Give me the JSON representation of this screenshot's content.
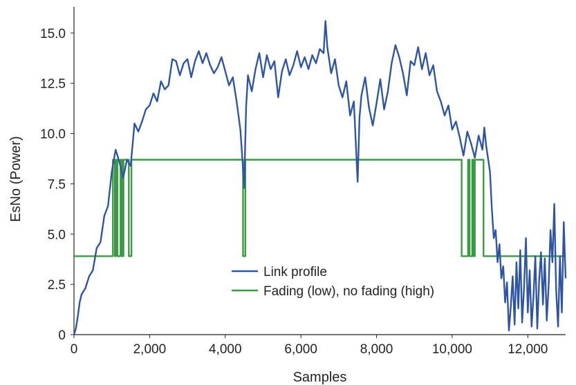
{
  "chart_data": {
    "type": "line",
    "xlabel": "Samples",
    "ylabel": "EsNo (Power)",
    "xlim": [
      0,
      13000
    ],
    "ylim": [
      0,
      16.3
    ],
    "x_ticks": [
      0,
      2000,
      4000,
      6000,
      8000,
      10000,
      12000
    ],
    "x_tick_labels": [
      "0",
      "2,000",
      "4,000",
      "6,000",
      "8,000",
      "10,000",
      "12,000"
    ],
    "y_ticks": [
      0,
      2.5,
      5.0,
      7.5,
      10.0,
      12.5,
      15.0
    ],
    "y_tick_labels": [
      "0",
      "2.5",
      "5.0",
      "7.5",
      "10.0",
      "12.5",
      "15.0"
    ],
    "grid": false,
    "legend_position": "bottom-center",
    "series": [
      {
        "name": "Link profile",
        "color": "#2E55A4",
        "x": [
          0,
          50,
          100,
          150,
          200,
          300,
          400,
          500,
          600,
          700,
          800,
          900,
          1000,
          1100,
          1200,
          1300,
          1400,
          1500,
          1600,
          1700,
          1800,
          1900,
          2000,
          2100,
          2200,
          2300,
          2400,
          2500,
          2600,
          2700,
          2800,
          2900,
          3000,
          3100,
          3200,
          3300,
          3400,
          3500,
          3600,
          3700,
          3800,
          3900,
          4000,
          4100,
          4200,
          4300,
          4400,
          4450,
          4500,
          4550,
          4600,
          4700,
          4800,
          4900,
          5000,
          5100,
          5200,
          5300,
          5400,
          5500,
          5600,
          5700,
          5800,
          5900,
          6000,
          6100,
          6200,
          6300,
          6400,
          6500,
          6600,
          6650,
          6700,
          6800,
          6900,
          7000,
          7100,
          7200,
          7300,
          7400,
          7500,
          7550,
          7600,
          7700,
          7800,
          7900,
          8000,
          8100,
          8200,
          8300,
          8400,
          8500,
          8600,
          8700,
          8800,
          8900,
          9000,
          9100,
          9200,
          9300,
          9400,
          9500,
          9600,
          9700,
          9800,
          9900,
          10000,
          10100,
          10200,
          10300,
          10400,
          10500,
          10600,
          10700,
          10800,
          10850,
          10900,
          11000,
          11050,
          11100,
          11150,
          11200,
          11250,
          11300,
          11350,
          11400,
          11450,
          11500,
          11550,
          11600,
          11650,
          11700,
          11750,
          11800,
          11850,
          11900,
          11950,
          12000,
          12050,
          12100,
          12150,
          12200,
          12250,
          12300,
          12350,
          12400,
          12450,
          12500,
          12550,
          12600,
          12650,
          12700,
          12750,
          12800,
          12850,
          12900,
          12950,
          13000
        ],
        "y": [
          0.0,
          0.3,
          0.9,
          1.6,
          2.0,
          2.3,
          2.9,
          3.2,
          4.3,
          4.6,
          5.9,
          6.4,
          8.1,
          9.2,
          8.6,
          7.8,
          8.7,
          8.4,
          10.5,
          10.1,
          10.6,
          11.2,
          11.4,
          12.0,
          11.6,
          12.6,
          12.2,
          12.4,
          13.7,
          13.6,
          12.9,
          13.5,
          13.7,
          12.8,
          13.6,
          14.1,
          13.5,
          14.0,
          13.4,
          13.0,
          13.3,
          13.8,
          13.1,
          12.4,
          12.8,
          11.6,
          10.2,
          8.8,
          7.3,
          11.3,
          12.9,
          12.1,
          13.2,
          14.0,
          12.8,
          13.9,
          13.2,
          13.6,
          11.8,
          13.1,
          13.7,
          12.9,
          13.4,
          14.1,
          13.3,
          13.8,
          13.2,
          13.9,
          13.5,
          14.2,
          14.0,
          15.6,
          14.3,
          13.0,
          13.7,
          12.4,
          11.8,
          12.6,
          10.9,
          11.6,
          7.6,
          10.8,
          11.9,
          12.8,
          11.3,
          10.4,
          11.5,
          12.7,
          11.2,
          12.1,
          13.5,
          14.4,
          13.8,
          13.0,
          11.9,
          13.6,
          13.4,
          14.3,
          13.2,
          14.0,
          12.9,
          13.4,
          12.1,
          11.6,
          10.9,
          11.4,
          10.2,
          10.6,
          9.8,
          8.9,
          10.1,
          9.5,
          8.8,
          9.9,
          9.2,
          10.3,
          9.4,
          8.1,
          6.2,
          4.8,
          5.2,
          3.6,
          4.5,
          2.8,
          3.4,
          1.6,
          2.6,
          0.2,
          1.4,
          2.9,
          0.5,
          3.6,
          1.3,
          4.2,
          0.6,
          2.3,
          4.8,
          1.1,
          3.2,
          0.4,
          1.9,
          3.9,
          0.3,
          2.7,
          4.1,
          1.5,
          3.8,
          0.7,
          2.4,
          5.2,
          3.6,
          6.5,
          2.2,
          0.4,
          3.9,
          1.1,
          5.6,
          2.8
        ]
      },
      {
        "name": "Fading (low), no fading (high)",
        "color": "#3A9A44",
        "x": [
          0,
          1030,
          1030,
          1080,
          1080,
          1110,
          1110,
          1150,
          1150,
          1230,
          1230,
          1270,
          1270,
          1310,
          1310,
          1450,
          1450,
          1520,
          1520,
          4470,
          4470,
          4530,
          4530,
          10250,
          10250,
          10420,
          10420,
          10460,
          10460,
          10530,
          10530,
          10560,
          10560,
          10600,
          10600,
          10830,
          10830,
          13000
        ],
        "y": [
          3.9,
          3.9,
          8.7,
          8.7,
          3.9,
          3.9,
          8.7,
          8.7,
          3.9,
          3.9,
          8.7,
          8.7,
          3.9,
          3.9,
          8.7,
          8.7,
          3.9,
          3.9,
          8.7,
          8.7,
          3.9,
          3.9,
          8.7,
          8.7,
          3.9,
          3.9,
          8.7,
          8.7,
          3.9,
          3.9,
          8.7,
          8.7,
          3.9,
          3.9,
          8.7,
          8.7,
          3.9,
          3.9
        ]
      }
    ]
  }
}
